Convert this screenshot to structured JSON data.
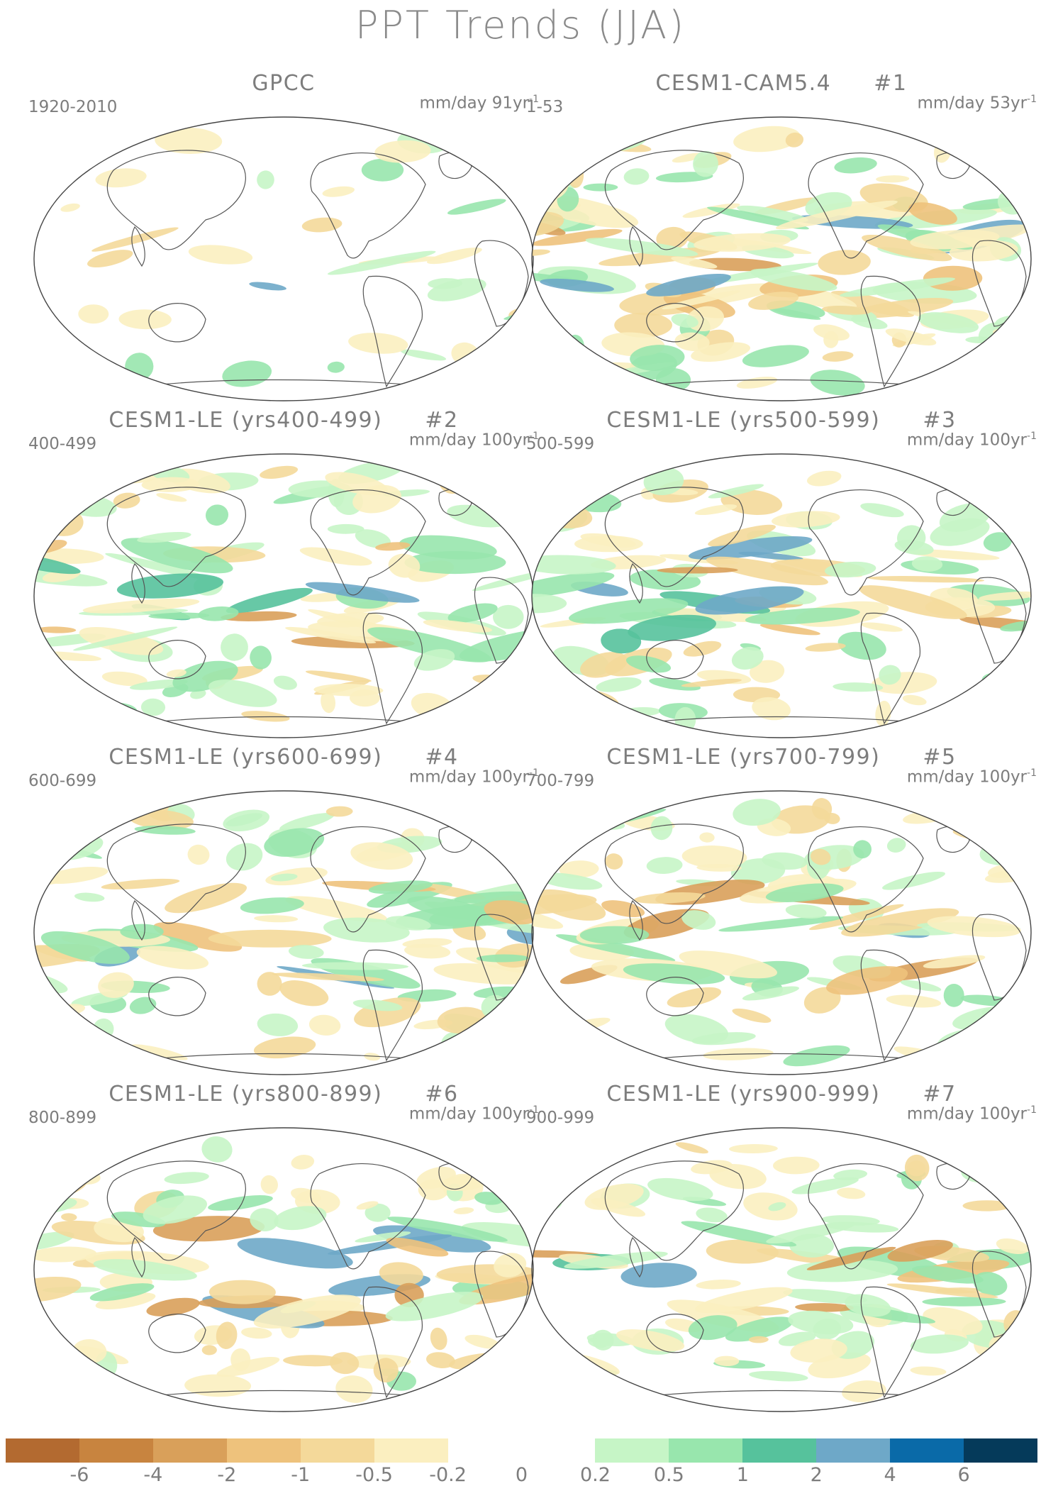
{
  "title": "PPT Trends (JJA)",
  "panels": [
    {
      "title": "GPCC",
      "number": "",
      "period": "1920-2010",
      "units": "mm/day 91yr",
      "units_sup": "-1",
      "seed": 3,
      "density": 0.25
    },
    {
      "title": "CESM1-CAM5.4",
      "number": "#1",
      "period": "1-53",
      "units": "mm/day 53yr",
      "units_sup": "-1",
      "seed": 11,
      "density": 0.9
    },
    {
      "title": "CESM1-LE (yrs400-499)",
      "number": "#2",
      "period": "400-499",
      "units": "mm/day 100yr",
      "units_sup": "-1",
      "seed": 17,
      "density": 0.7
    },
    {
      "title": "CESM1-LE (yrs500-599)",
      "number": "#3",
      "period": "500-599",
      "units": "mm/day 100yr",
      "units_sup": "-1",
      "seed": 23,
      "density": 0.7
    },
    {
      "title": "CESM1-LE (yrs600-699)",
      "number": "#4",
      "period": "600-699",
      "units": "mm/day 100yr",
      "units_sup": "-1",
      "seed": 29,
      "density": 0.7
    },
    {
      "title": "CESM1-LE (yrs700-799)",
      "number": "#5",
      "period": "700-799",
      "units": "mm/day 100yr",
      "units_sup": "-1",
      "seed": 31,
      "density": 0.7
    },
    {
      "title": "CESM1-LE (yrs800-899)",
      "number": "#6",
      "period": "800-899",
      "units": "mm/day 100yr",
      "units_sup": "-1",
      "seed": 37,
      "density": 0.7
    },
    {
      "title": "CESM1-LE (yrs900-999)",
      "number": "#7",
      "period": "900-999",
      "units": "mm/day 100yr",
      "units_sup": "-1",
      "seed": 41,
      "density": 0.7
    }
  ],
  "colorbar": {
    "colors": [
      "#b36a30",
      "#c8843f",
      "#d9a05a",
      "#eec27c",
      "#f4d99a",
      "#fbefc0",
      "#ffffff",
      "#ffffff",
      "#c6f5c6",
      "#98e6ad",
      "#56c29c",
      "#6ea8c8",
      "#0a6aa8",
      "#053a5a"
    ],
    "tick_labels": [
      "-6",
      "-4",
      "-2",
      "-1",
      "-0.5",
      "-0.2",
      "0",
      "0.2",
      "0.5",
      "1",
      "2",
      "4",
      "6"
    ]
  }
}
